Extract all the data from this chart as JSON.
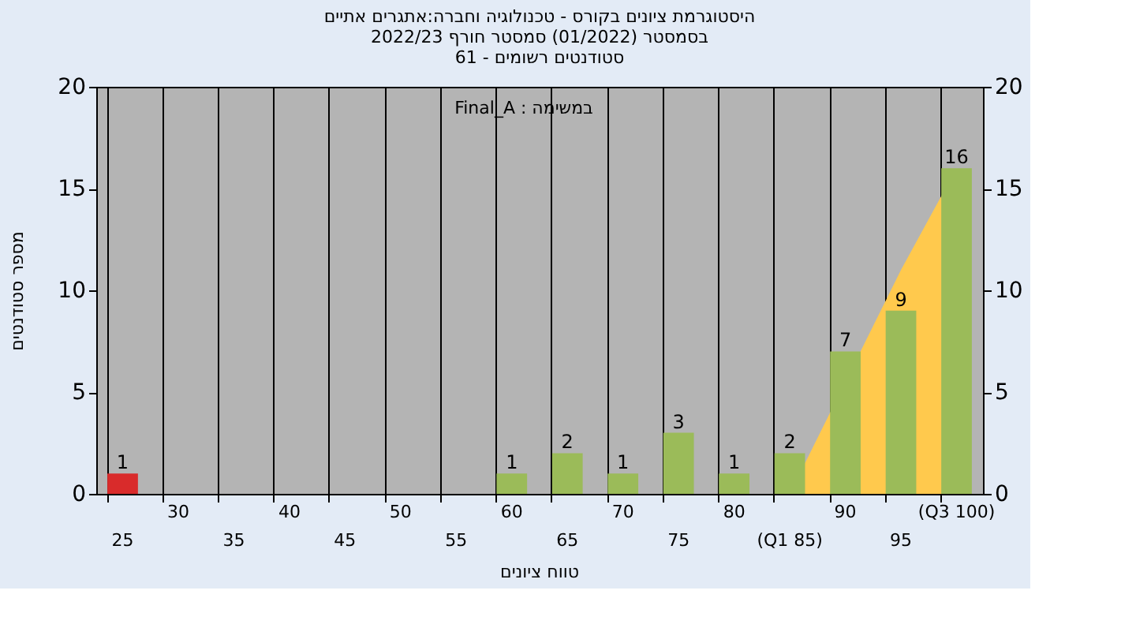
{
  "chart_data": {
    "type": "bar",
    "title": [
      "היסטוגרמת ציונים בקורס - טכנולוגיה וחברה:אתגרים אתיים",
      "בסמסטר  (01/2022)  סמסטר חורף  2022/23",
      "סטודנטים רשומים - 61"
    ],
    "xlabel": "טווח ציונים",
    "ylabel": "מספר סטודנטים",
    "annotations": [
      "Final_A : במשימה"
    ],
    "categories": [
      "25",
      "30",
      "35",
      "40",
      "45",
      "50",
      "55",
      "60",
      "65",
      "70",
      "75",
      "80",
      "(Q1 85)",
      "90",
      "95",
      "(Q3 100)"
    ],
    "series": [
      {
        "type": "area",
        "color": "#ffc94d",
        "values": [
          null,
          null,
          null,
          null,
          null,
          null,
          null,
          null,
          null,
          null,
          null,
          null,
          0,
          null,
          11,
          16
        ]
      },
      {
        "type": "bar",
        "colors": [
          "#d92b2b",
          "#9bbb59",
          "#9bbb59",
          "#9bbb59",
          "#9bbb59",
          "#9bbb59",
          "#9bbb59",
          "#9bbb59",
          "#9bbb59",
          "#9bbb59",
          "#9bbb59",
          "#9bbb59",
          "#9bbb59",
          "#9bbb59",
          "#9bbb59",
          "#9bbb59"
        ],
        "values": [
          1,
          null,
          null,
          null,
          null,
          null,
          null,
          1,
          2,
          1,
          3,
          1,
          2,
          7,
          9,
          16
        ],
        "data_labels": true
      }
    ],
    "ylim": [
      0,
      20
    ],
    "yticks": [
      0,
      5,
      10,
      15,
      20
    ],
    "y2lim": [
      0,
      20
    ],
    "y2ticks": [
      0,
      5,
      10,
      15,
      20
    ],
    "grid": "x"
  }
}
